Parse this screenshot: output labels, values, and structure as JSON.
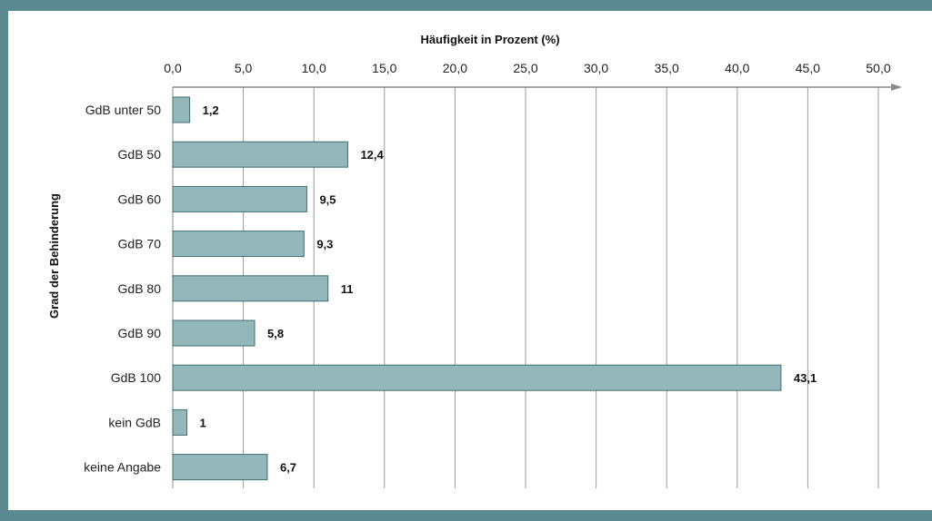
{
  "chart_data": {
    "type": "bar",
    "orientation": "horizontal",
    "title": "",
    "xlabel": "Häufigkeit in Prozent (%)",
    "ylabel": "Grad der Behinderung",
    "categories": [
      "GdB unter 50",
      "GdB 50",
      "GdB 60",
      "GdB 70",
      "GdB 80",
      "GdB 90",
      "GdB 100",
      "kein GdB",
      "keine Angabe"
    ],
    "values": [
      1.2,
      12.4,
      9.5,
      9.3,
      11,
      5.8,
      43.1,
      1,
      6.7
    ],
    "value_labels": [
      "1,2",
      "12,4",
      "9,5",
      "9,3",
      "11",
      "5,8",
      "43,1",
      "1",
      "6,7"
    ],
    "xlim": [
      0,
      50
    ],
    "x_ticks": [
      0,
      5,
      10,
      15,
      20,
      25,
      30,
      35,
      40,
      45,
      50
    ],
    "x_tick_labels": [
      "0,0",
      "5,0",
      "10,0",
      "15,0",
      "20,0",
      "25,0",
      "30,0",
      "35,0",
      "40,0",
      "45,0",
      "50,0"
    ],
    "x_axis_position": "top",
    "grid": "vertical",
    "legend": "none",
    "colors": {
      "bar_fill": "#94b8b9",
      "bar_stroke": "#3f6f72",
      "grid": "#9a9a9a",
      "axis": "#8a8a8a",
      "frame": "#5a8a8f"
    }
  }
}
